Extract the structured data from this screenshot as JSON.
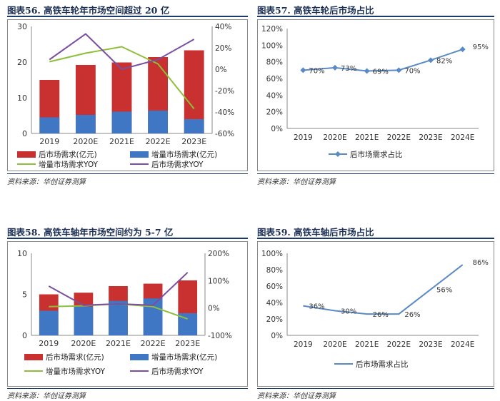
{
  "colors": {
    "accent": "#1b3a6b",
    "bar_after": "#c8312f",
    "bar_new": "#3f77c4",
    "line_green": "#8dbf3a",
    "line_purple": "#7a4fa0",
    "line_blue": "#5a8ac6"
  },
  "source_text": "资料来源：华创证券测算",
  "panel56": {
    "title": "图表56.  高铁车轮年市场空间超过 20 亿",
    "chart_data": {
      "type": "bar",
      "categories": [
        "2019",
        "2020E",
        "2021E",
        "2022E",
        "2023E"
      ],
      "series": [
        {
          "name": "后市场需求(亿元)",
          "type": "bar",
          "axis": "left",
          "values": [
            15.0,
            19.2,
            19.9,
            21.4,
            23.3
          ]
        },
        {
          "name": "增量市场需求(亿元)",
          "type": "bar",
          "axis": "left",
          "values": [
            4.5,
            5.2,
            6.1,
            6.4,
            4.0
          ]
        },
        {
          "name": "增量市场需求YOY",
          "type": "line",
          "axis": "right",
          "values": [
            7,
            15,
            21,
            5,
            -37
          ]
        },
        {
          "name": "后市场需求YOY",
          "type": "line",
          "axis": "right",
          "values": [
            9,
            33,
            0,
            9,
            28
          ]
        }
      ],
      "yleft": {
        "min": 0,
        "max": 30,
        "ticks": [
          "0",
          "10",
          "20",
          "30"
        ]
      },
      "yright": {
        "min": -60,
        "max": 40,
        "ticks": [
          "-60%",
          "-40%",
          "-20%",
          "0%",
          "20%",
          "40%"
        ]
      },
      "legend_position": "bottom"
    }
  },
  "panel57": {
    "title": "图表57.  高铁车轮后市场占比",
    "chart_data": {
      "type": "line",
      "categories": [
        "2019",
        "2020E",
        "2021E",
        "2022E",
        "2023E",
        "2024E"
      ],
      "series": [
        {
          "name": "后市场需求占比",
          "values": [
            70,
            73,
            69,
            70,
            82,
            95
          ],
          "labels": [
            "70%",
            "73%",
            "69%",
            "70%",
            "82%",
            "95%"
          ]
        }
      ],
      "ylim": [
        0,
        120
      ],
      "yticks": [
        "0%",
        "20%",
        "40%",
        "60%",
        "80%",
        "100%",
        "120%"
      ],
      "markers": true,
      "legend_position": "bottom"
    }
  },
  "panel58": {
    "title": "图表58.  高铁车轴年市场空间约为 5-7 亿",
    "chart_data": {
      "type": "bar",
      "categories": [
        "2019",
        "2020E",
        "2021E",
        "2022E",
        "2023E"
      ],
      "series": [
        {
          "name": "后市场需求(亿元)",
          "type": "bar",
          "axis": "left",
          "values": [
            5.0,
            5.2,
            6.0,
            6.3,
            6.7
          ]
        },
        {
          "name": "增量市场需求(亿元)",
          "type": "bar",
          "axis": "left",
          "values": [
            3.0,
            3.5,
            4.2,
            4.5,
            2.7
          ]
        },
        {
          "name": "增量市场需求YOY",
          "type": "line",
          "axis": "right",
          "values": [
            5,
            8,
            15,
            5,
            -40
          ]
        },
        {
          "name": "后市场需求YOY",
          "type": "line",
          "axis": "right",
          "values": [
            80,
            10,
            15,
            10,
            130
          ]
        }
      ],
      "yleft": {
        "min": 0,
        "max": 10,
        "ticks": [
          "0",
          "5",
          "10"
        ]
      },
      "yright": {
        "min": -100,
        "max": 200,
        "ticks": [
          "-100%",
          "0%",
          "100%",
          "200%"
        ]
      },
      "legend_position": "bottom"
    }
  },
  "panel59": {
    "title": "图表59.  高铁车轴后市场占比",
    "chart_data": {
      "type": "line",
      "categories": [
        "2019",
        "2020E",
        "2021E",
        "2022E",
        "2023E",
        "2024E"
      ],
      "series": [
        {
          "name": "后市场需求占比",
          "values": [
            36,
            30,
            26,
            26,
            56,
            86
          ],
          "labels": [
            "36%",
            "30%",
            "26%",
            "26%",
            "56%",
            "86%"
          ]
        }
      ],
      "ylim": [
        0,
        100
      ],
      "yticks": [
        "0%",
        "20%",
        "40%",
        "60%",
        "80%",
        "100%"
      ],
      "markers": false,
      "legend_position": "bottom"
    }
  }
}
